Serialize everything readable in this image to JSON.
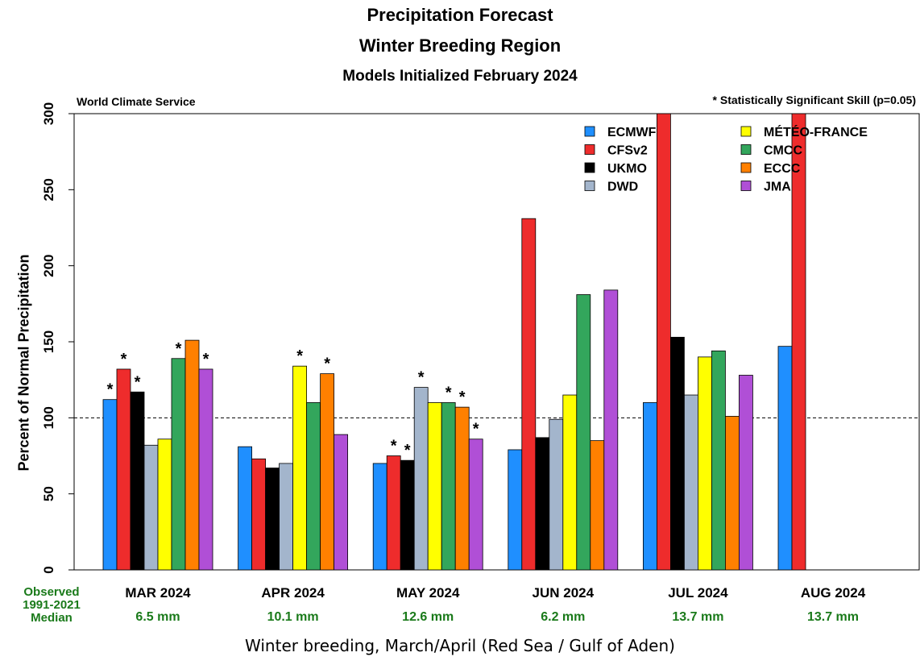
{
  "chart_data": {
    "type": "bar",
    "title": "Precipitation Forecast",
    "subtitle": "Winter Breeding Region",
    "subtitle2": "Models Initialized February 2024",
    "credit": "World Climate Service",
    "skill_note": "* Statistically Significant Skill (p=0.05)",
    "ylabel": "Percent of Normal Precipitation",
    "ylim": [
      0,
      300
    ],
    "yticks": [
      0,
      50,
      100,
      150,
      200,
      250,
      300
    ],
    "reference_line": 100,
    "legend_position": "top-right",
    "categories": [
      "MAR 2024",
      "APR 2024",
      "MAY 2024",
      "JUN 2024",
      "JUL 2024",
      "AUG 2024"
    ],
    "observed_label": [
      "Observed",
      "1991-2021",
      "Median"
    ],
    "observed_median": [
      "6.5 mm",
      "10.1 mm",
      "12.6 mm",
      "6.2 mm",
      "13.7 mm",
      "13.7 mm"
    ],
    "series": [
      {
        "name": "ECMWF",
        "color": "#1f8fff",
        "values": [
          112,
          81,
          70,
          79,
          110,
          147
        ],
        "significant": [
          true,
          false,
          false,
          false,
          false,
          false
        ]
      },
      {
        "name": "CFSv2",
        "color": "#ee2c2c",
        "values": [
          132,
          73,
          75,
          231,
          300,
          300
        ],
        "significant": [
          true,
          false,
          true,
          false,
          false,
          false
        ]
      },
      {
        "name": "UKMO",
        "color": "#000000",
        "values": [
          117,
          67,
          72,
          87,
          153,
          null
        ],
        "significant": [
          true,
          false,
          true,
          false,
          false,
          false
        ]
      },
      {
        "name": "DWD",
        "color": "#a3b5cc",
        "values": [
          82,
          70,
          120,
          99,
          115,
          null
        ],
        "significant": [
          false,
          false,
          true,
          false,
          false,
          false
        ]
      },
      {
        "name": "MÉTÉO-FRANCE",
        "color": "#ffff00",
        "values": [
          86,
          134,
          110,
          115,
          140,
          null
        ],
        "significant": [
          false,
          true,
          false,
          false,
          false,
          false
        ]
      },
      {
        "name": "CMCC",
        "color": "#33a65c",
        "values": [
          139,
          110,
          110,
          181,
          144,
          null
        ],
        "significant": [
          true,
          false,
          true,
          false,
          false,
          false
        ]
      },
      {
        "name": "ECCC",
        "color": "#ff8000",
        "values": [
          151,
          129,
          107,
          85,
          101,
          null
        ],
        "significant": [
          false,
          true,
          true,
          false,
          false,
          false
        ]
      },
      {
        "name": "JMA",
        "color": "#b04fd6",
        "values": [
          132,
          89,
          86,
          184,
          128,
          null
        ],
        "significant": [
          true,
          false,
          true,
          false,
          false,
          false
        ]
      }
    ]
  },
  "caption": "Winter breeding, March/April (Red Sea / Gulf of Aden)"
}
